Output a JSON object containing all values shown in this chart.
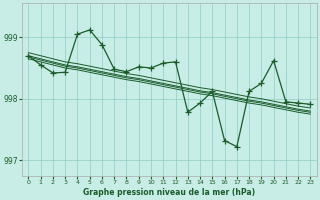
{
  "title": "Graphe pression niveau de la mer (hPa)",
  "bg_color": "#c8ece6",
  "grid_color": "#8ecdc4",
  "line_color": "#1a5c2a",
  "xlim": [
    -0.5,
    23.5
  ],
  "ylim": [
    996.75,
    999.55
  ],
  "yticks": [
    997,
    998,
    999
  ],
  "xticks": [
    0,
    1,
    2,
    3,
    4,
    5,
    6,
    7,
    8,
    9,
    10,
    11,
    12,
    13,
    14,
    15,
    16,
    17,
    18,
    19,
    20,
    21,
    22,
    23
  ],
  "trend1": [
    998.7,
    998.65,
    998.6,
    998.55,
    998.52,
    998.48,
    998.44,
    998.4,
    998.36,
    998.33,
    998.29,
    998.25,
    998.21,
    998.17,
    998.13,
    998.1,
    998.06,
    998.02,
    997.98,
    997.95,
    997.91,
    997.87,
    997.83,
    997.8
  ],
  "trend2": [
    998.65,
    998.6,
    998.55,
    998.5,
    998.47,
    998.43,
    998.39,
    998.35,
    998.31,
    998.28,
    998.24,
    998.2,
    998.16,
    998.12,
    998.08,
    998.05,
    998.01,
    997.97,
    997.93,
    997.9,
    997.86,
    997.82,
    997.78,
    997.75
  ],
  "trend3": [
    998.75,
    998.7,
    998.65,
    998.6,
    998.57,
    998.53,
    998.49,
    998.45,
    998.41,
    998.38,
    998.34,
    998.3,
    998.26,
    998.22,
    998.18,
    998.15,
    998.11,
    998.07,
    998.03,
    998.0,
    997.96,
    997.92,
    997.88,
    997.85
  ],
  "trend4": [
    998.68,
    998.63,
    998.58,
    998.53,
    998.5,
    998.46,
    998.42,
    998.38,
    998.34,
    998.31,
    998.27,
    998.23,
    998.19,
    998.15,
    998.11,
    998.08,
    998.04,
    998.0,
    997.96,
    997.93,
    997.89,
    997.85,
    997.81,
    997.78
  ],
  "main_y": [
    998.7,
    998.55,
    998.42,
    998.43,
    999.05,
    999.12,
    998.88,
    998.48,
    998.44,
    998.52,
    998.5,
    998.58,
    998.6,
    997.78,
    997.93,
    998.12,
    997.32,
    997.22,
    998.12,
    998.25,
    998.62,
    997.95,
    997.93,
    997.91
  ]
}
